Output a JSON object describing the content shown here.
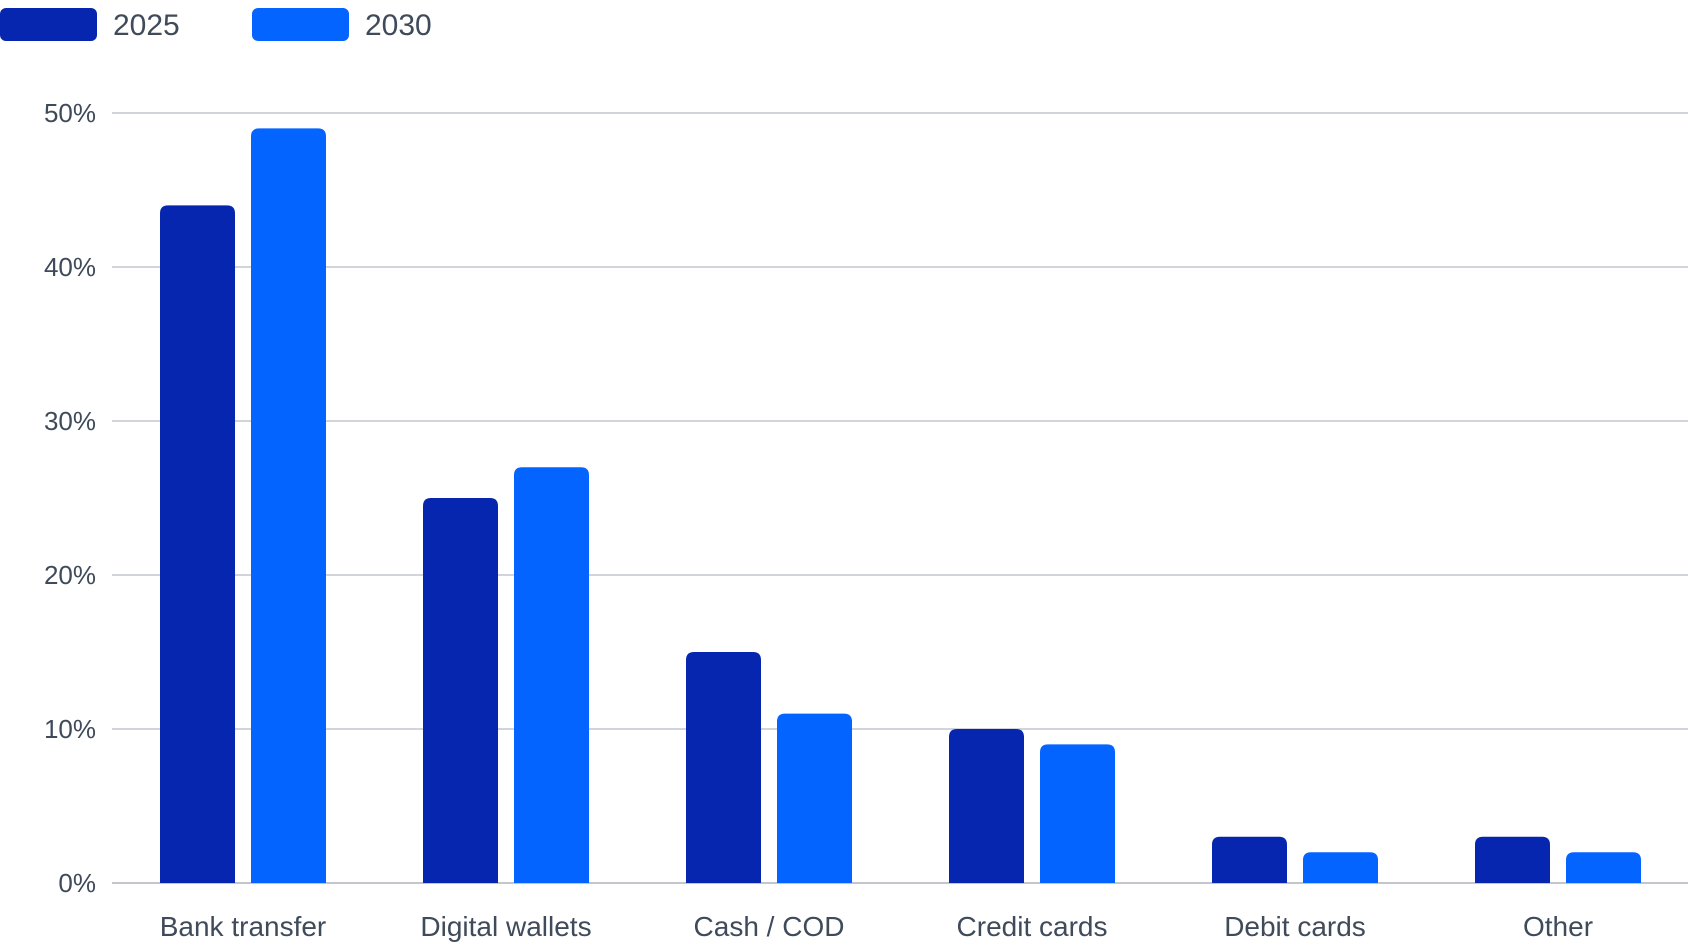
{
  "chart_data": {
    "type": "bar",
    "categories": [
      "Bank transfer",
      "Digital wallets",
      "Cash / COD",
      "Credit cards",
      "Debit cards",
      "Other"
    ],
    "series": [
      {
        "name": "2025",
        "color": "#0726b0",
        "values": [
          44,
          25,
          15,
          10,
          3,
          3
        ]
      },
      {
        "name": "2030",
        "color": "#0364ff",
        "values": [
          49,
          27,
          11,
          9,
          2,
          2
        ]
      }
    ],
    "ylim": [
      0,
      50
    ],
    "yticks": [
      0,
      10,
      20,
      30,
      40,
      50
    ],
    "ytick_labels": [
      "0%",
      "10%",
      "20%",
      "30%",
      "40%",
      "50%"
    ],
    "grid": true,
    "legend_position": "top-left",
    "title": "",
    "xlabel": "",
    "ylabel": ""
  }
}
